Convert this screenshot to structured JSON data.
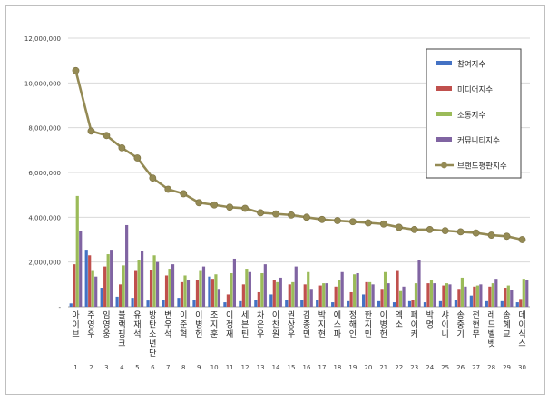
{
  "chart_data": {
    "type": "bar",
    "title": "",
    "xlabel": "",
    "ylabel": "",
    "ylim": [
      0,
      12000000
    ],
    "yticks": [
      "-",
      "2,000,000",
      "4,000,000",
      "6,000,000",
      "8,000,000",
      "10,000,000",
      "12,000,000"
    ],
    "grid": true,
    "legend_position": "top-right",
    "categories": [
      "아이브",
      "주영우",
      "임영웅",
      "블랙핑크",
      "유재석",
      "방탄소년단",
      "변우석",
      "이준혁",
      "이병헌",
      "조지훈",
      "이정재",
      "세븐틴",
      "차은우",
      "이찬원",
      "권상우",
      "김종민",
      "박지현",
      "에스파",
      "정해인",
      "한지민",
      "이병헌",
      "엑소",
      "페이커",
      "박명",
      "샤이니",
      "송중기",
      "전현무",
      "레드벨벳",
      "송혜교",
      "데이식스"
    ],
    "ranks": [
      "1",
      "2",
      "3",
      "4",
      "5",
      "6",
      "7",
      "8",
      "9",
      "10",
      "11",
      "12",
      "13",
      "14",
      "15",
      "16",
      "17",
      "18",
      "19",
      "20",
      "21",
      "22",
      "23",
      "24",
      "25",
      "26",
      "27",
      "28",
      "29",
      "30"
    ],
    "series": [
      {
        "name": "참여지수",
        "color": "#4472c4",
        "values": [
          150000,
          2550000,
          850000,
          450000,
          400000,
          280000,
          300000,
          400000,
          300000,
          1350000,
          200000,
          250000,
          300000,
          550000,
          300000,
          300000,
          300000,
          200000,
          250000,
          550000,
          250000,
          200000,
          250000,
          200000,
          250000,
          300000,
          500000,
          250000,
          250000,
          200000
        ]
      },
      {
        "name": "미디어지수",
        "color": "#c0504d",
        "values": [
          1900000,
          2300000,
          1800000,
          1000000,
          1600000,
          1650000,
          1400000,
          1100000,
          1200000,
          1250000,
          550000,
          1000000,
          650000,
          1200000,
          1000000,
          1000000,
          950000,
          900000,
          650000,
          1100000,
          800000,
          1600000,
          300000,
          1050000,
          950000,
          800000,
          900000,
          900000,
          850000,
          350000
        ]
      },
      {
        "name": "소통지수",
        "color": "#9bbb59",
        "values": [
          4950000,
          1600000,
          2350000,
          1850000,
          2100000,
          2300000,
          1700000,
          1400000,
          1600000,
          1450000,
          1500000,
          1700000,
          1500000,
          1100000,
          1100000,
          1550000,
          1050000,
          1200000,
          1450000,
          1100000,
          1550000,
          700000,
          1050000,
          1200000,
          1050000,
          1300000,
          950000,
          1050000,
          950000,
          1250000
        ]
      },
      {
        "name": "커뮤니티지수",
        "color": "#8064a2",
        "values": [
          3400000,
          1350000,
          2550000,
          3650000,
          2500000,
          2000000,
          1900000,
          1200000,
          1800000,
          800000,
          2150000,
          1550000,
          1900000,
          1300000,
          1800000,
          800000,
          1050000,
          1550000,
          1500000,
          1000000,
          1050000,
          900000,
          2100000,
          1050000,
          1000000,
          900000,
          1000000,
          1250000,
          750000,
          1200000
        ]
      },
      {
        "name": "브랜드평판지수",
        "color": "#948a54",
        "values": [
          10550000,
          7850000,
          7650000,
          7100000,
          6650000,
          5750000,
          5250000,
          5050000,
          4650000,
          4550000,
          4450000,
          4400000,
          4200000,
          4150000,
          4100000,
          4000000,
          3900000,
          3850000,
          3800000,
          3750000,
          3700000,
          3550000,
          3450000,
          3450000,
          3400000,
          3350000,
          3300000,
          3200000,
          3150000,
          3000000
        ]
      }
    ]
  }
}
